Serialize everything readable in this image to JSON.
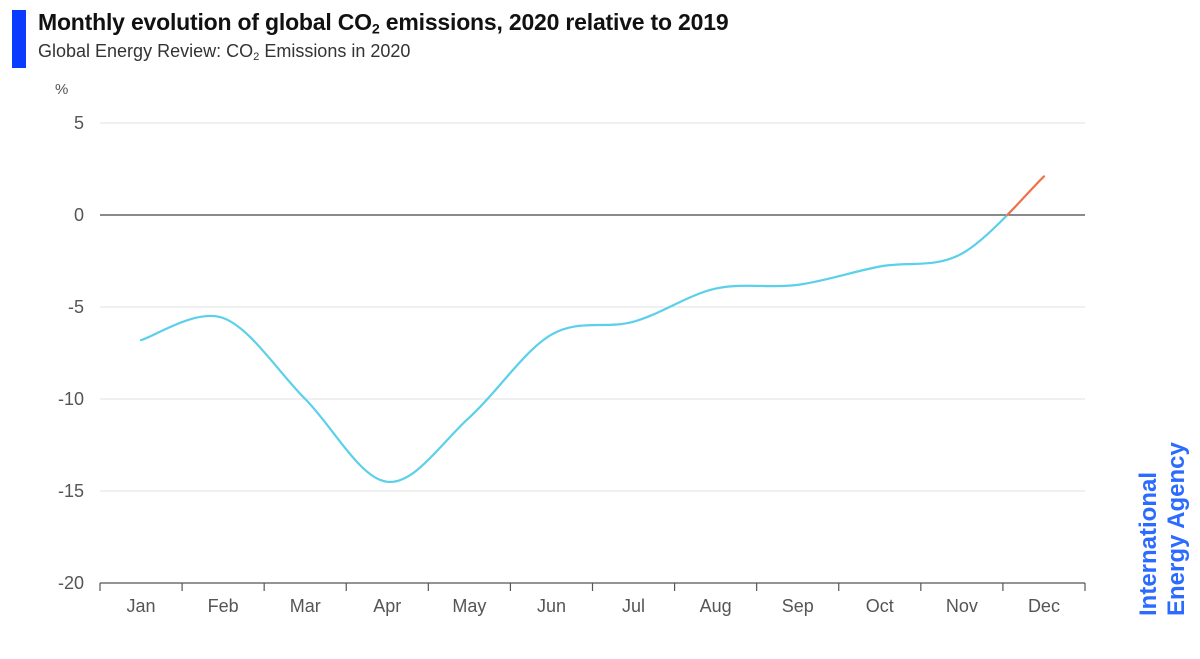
{
  "header": {
    "title_pre": "Monthly evolution of global CO",
    "title_sub": "2",
    "title_post": " emissions, 2020 relative to 2019",
    "subtitle_pre": "Global Energy Review: CO",
    "subtitle_sub": "2",
    "subtitle_post": " Emissions in 2020"
  },
  "logo": {
    "line1": "International",
    "line2": "Energy Agency"
  },
  "colors": {
    "accent": "#0a3cff",
    "line": "#5ad0ea",
    "highlight": "#f07048",
    "logo": "#2b6bff"
  },
  "chart_data": {
    "type": "line",
    "title": "Monthly evolution of global CO2 emissions, 2020 relative to 2019",
    "subtitle": "Global Energy Review: CO2 Emissions in 2020",
    "ylabel": "%",
    "xlabel": "",
    "categories": [
      "Jan",
      "Feb",
      "Mar",
      "Apr",
      "May",
      "Jun",
      "Jul",
      "Aug",
      "Sep",
      "Oct",
      "Nov",
      "Dec"
    ],
    "ylim": [
      -20,
      5
    ],
    "yticks": [
      5,
      0,
      -5,
      -10,
      -15,
      -20
    ],
    "series": [
      {
        "values": [
          -6.8,
          -5.6,
          -10.0,
          -14.5,
          -11.0,
          -6.5,
          -5.8,
          -4.0,
          -3.8,
          -2.8,
          -2.1,
          2.1
        ]
      }
    ],
    "grid": true,
    "zero_line": true,
    "legend": "none"
  }
}
